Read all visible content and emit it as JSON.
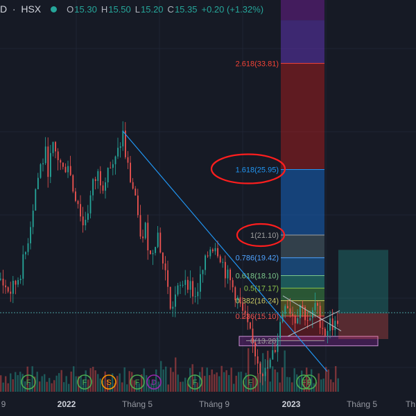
{
  "header": {
    "symbol_tail": "D",
    "exchange": "HSX",
    "open_label": "O",
    "open": "15.30",
    "high_label": "H",
    "high": "15.50",
    "low_label": "L",
    "low": "15.20",
    "close_label": "C",
    "close": "15.35",
    "change": "+0.20 (+1.32%)"
  },
  "colors": {
    "background": "#161a25",
    "up": "#26a69a",
    "down": "#ef5350",
    "trendline": "#2196f3",
    "annotation": "#ff1e1e",
    "fib_1": "#a0a0a0",
    "fib_0786": "#4fa3ff",
    "fib_0618": "#7cc88a",
    "fib_05": "#8bc34a",
    "fib_0382": "#c8c864",
    "fib_0236": "#ef5350",
    "fib_0": "#9e9e9e",
    "fib_1618": "#2196f3",
    "fib_2618": "#f44336",
    "event_marker": "#4caf50",
    "event_marker_alt": "#ff9800",
    "event_marker_alt2": "#9c27b0"
  },
  "chart_data": {
    "type": "candlestick",
    "x_ticks": [
      "9",
      "2022",
      "Tháng 5",
      "Tháng 9",
      "2023",
      "Tháng 5",
      "Th"
    ],
    "x_ticks_bold": [
      "2022",
      "2023"
    ],
    "ylim": [
      9.5,
      38.5
    ],
    "fib_levels": [
      {
        "ratio": "0",
        "price": "13.28",
        "label": "0(13.28)",
        "color_key": "fib_0"
      },
      {
        "ratio": "0.236",
        "price": "15.10",
        "label": "0.236(15.10)",
        "color_key": "fib_0236"
      },
      {
        "ratio": "0.382",
        "price": "16.24",
        "label": "0.382(16.24)",
        "color_key": "fib_0382"
      },
      {
        "ratio": "0.5",
        "price": "17.17",
        "label": "0.5(17.17)",
        "color_key": "fib_05"
      },
      {
        "ratio": "0.618",
        "price": "18.10",
        "label": "0.618(18.10)",
        "color_key": "fib_0618"
      },
      {
        "ratio": "0.786",
        "price": "19.42",
        "label": "0.786(19.42)",
        "color_key": "fib_0786"
      },
      {
        "ratio": "1",
        "price": "21.10",
        "label": "1(21.10)",
        "color_key": "fib_1"
      },
      {
        "ratio": "1.618",
        "price": "25.95",
        "label": "1.618(25.95)",
        "color_key": "fib_1618"
      },
      {
        "ratio": "2.618",
        "price": "33.81",
        "label": "2.618(33.81)",
        "color_key": "fib_2618"
      }
    ],
    "highlighted_levels": [
      "1.618",
      "1"
    ],
    "fib_zone_x_range": [
      "Tháng 12",
      "Tháng 2"
    ],
    "trendline": {
      "from": {
        "date": "2022-04",
        "price": 28.8
      },
      "to": {
        "date": "2023-02",
        "price": 11.0
      }
    },
    "position_tool": {
      "entry": 15.3,
      "target": 20.0,
      "stop": 13.4
    },
    "event_markers": [
      {
        "label": "F"
      },
      {
        "label": "F"
      },
      {
        "label": "S"
      },
      {
        "label": "F"
      },
      {
        "label": "D"
      },
      {
        "label": "F"
      },
      {
        "label": "F"
      },
      {
        "label": "F"
      },
      {
        "label": "F"
      }
    ],
    "last_price": "15.35",
    "price_path": [
      [
        17.8,
        0
      ],
      [
        17.2,
        2
      ],
      [
        16.9,
        4
      ],
      [
        17.5,
        6
      ],
      [
        18.4,
        8
      ],
      [
        19.8,
        10
      ],
      [
        22.0,
        12
      ],
      [
        24.5,
        14
      ],
      [
        26.2,
        16
      ],
      [
        27.1,
        18
      ],
      [
        26.0,
        19
      ],
      [
        27.5,
        21
      ],
      [
        26.8,
        23
      ],
      [
        25.9,
        25
      ],
      [
        26.5,
        27
      ],
      [
        24.5,
        29
      ],
      [
        23.6,
        31
      ],
      [
        21.8,
        33
      ],
      [
        23.0,
        35
      ],
      [
        24.8,
        37
      ],
      [
        25.6,
        39
      ],
      [
        24.9,
        41
      ],
      [
        26.3,
        43
      ],
      [
        26.0,
        45
      ],
      [
        27.2,
        47
      ],
      [
        28.6,
        49
      ],
      [
        27.0,
        50
      ],
      [
        25.2,
        52
      ],
      [
        24.0,
        54
      ],
      [
        22.0,
        55
      ],
      [
        20.6,
        57
      ],
      [
        21.6,
        58
      ],
      [
        19.5,
        60
      ],
      [
        20.8,
        62
      ],
      [
        21.2,
        63
      ],
      [
        19.0,
        65
      ],
      [
        17.5,
        67
      ],
      [
        15.4,
        68
      ],
      [
        16.6,
        70
      ],
      [
        17.2,
        72
      ],
      [
        18.0,
        74
      ],
      [
        17.3,
        76
      ],
      [
        16.5,
        78
      ],
      [
        17.8,
        80
      ],
      [
        19.0,
        82
      ],
      [
        20.2,
        84
      ],
      [
        20.4,
        86
      ],
      [
        19.6,
        88
      ],
      [
        18.4,
        90
      ],
      [
        17.6,
        92
      ],
      [
        16.8,
        94
      ],
      [
        15.8,
        96
      ],
      [
        14.8,
        98
      ],
      [
        13.6,
        100
      ],
      [
        12.4,
        102
      ],
      [
        11.3,
        104
      ],
      [
        10.9,
        106
      ],
      [
        11.6,
        108
      ],
      [
        12.8,
        110
      ],
      [
        14.6,
        112
      ],
      [
        16.3,
        114
      ],
      [
        15.6,
        116
      ],
      [
        14.9,
        118
      ],
      [
        16.0,
        120
      ],
      [
        15.2,
        122
      ],
      [
        14.6,
        124
      ],
      [
        15.9,
        126
      ],
      [
        14.8,
        128
      ],
      [
        13.9,
        130
      ],
      [
        14.6,
        132
      ],
      [
        14.4,
        134
      ],
      [
        15.4,
        136
      ]
    ]
  }
}
